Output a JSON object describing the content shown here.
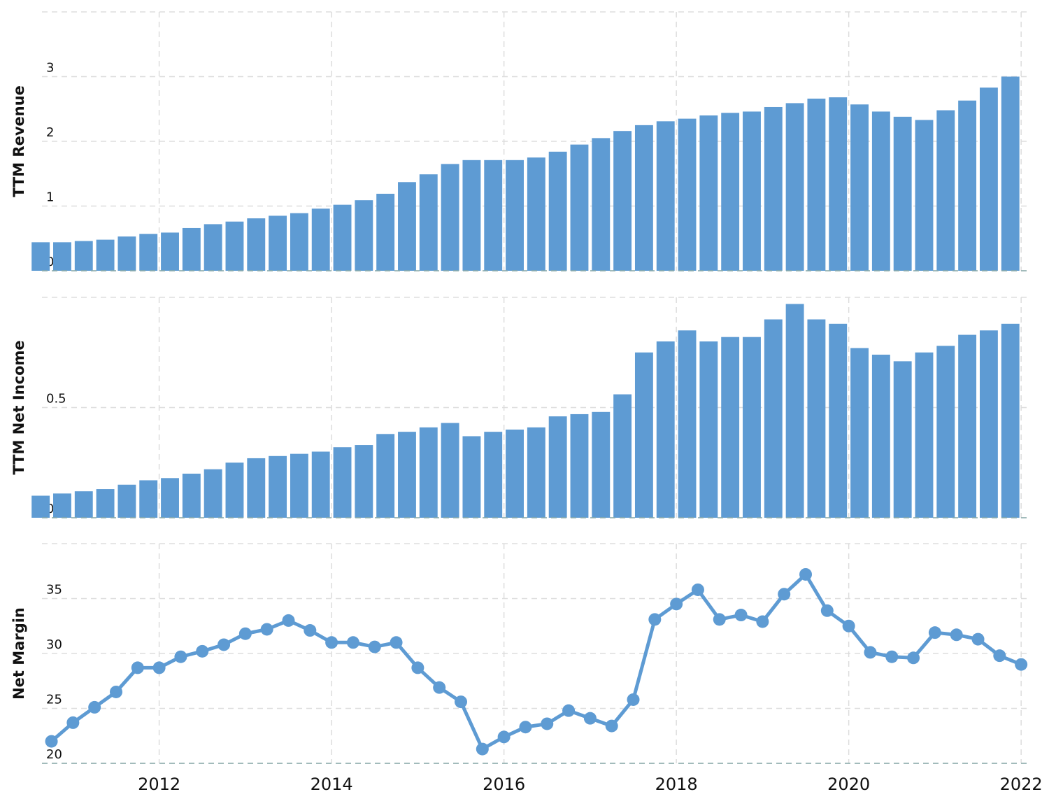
{
  "chart_data": [
    {
      "type": "bar",
      "ylabel": "TTM Revenue",
      "color": "#5e9bd3",
      "grid": true,
      "x": [
        2010.75,
        2011,
        2011.25,
        2011.5,
        2011.75,
        2012,
        2012.25,
        2012.5,
        2012.75,
        2013,
        2013.25,
        2013.5,
        2013.75,
        2014,
        2014.25,
        2014.5,
        2014.75,
        2015,
        2015.25,
        2015.5,
        2015.75,
        2016,
        2016.25,
        2016.5,
        2016.75,
        2017,
        2017.25,
        2017.5,
        2017.75,
        2018,
        2018.25,
        2018.5,
        2018.75,
        2019,
        2019.25,
        2019.5,
        2019.75,
        2020,
        2020.25,
        2020.5,
        2020.75,
        2021,
        2021.25,
        2021.5,
        2021.75,
        2022
      ],
      "values": [
        0.44,
        0.44,
        0.46,
        0.48,
        0.53,
        0.57,
        0.59,
        0.66,
        0.72,
        0.76,
        0.81,
        0.85,
        0.89,
        0.96,
        1.02,
        1.09,
        1.19,
        1.37,
        1.49,
        1.65,
        1.71,
        1.71,
        1.71,
        1.75,
        1.84,
        1.95,
        2.05,
        2.16,
        2.25,
        2.31,
        2.35,
        2.4,
        2.44,
        2.46,
        2.53,
        2.59,
        2.66,
        2.68,
        2.57,
        2.46,
        2.38,
        2.33,
        2.48,
        2.63,
        2.83,
        3.0
      ],
      "xlim": [
        2010.64,
        2022.08
      ],
      "ylim": [
        0,
        4
      ],
      "yticks": [
        0,
        1,
        2,
        3
      ]
    },
    {
      "type": "bar",
      "ylabel": "TTM Net Income",
      "color": "#5e9bd3",
      "grid": true,
      "x": [
        2010.75,
        2011,
        2011.25,
        2011.5,
        2011.75,
        2012,
        2012.25,
        2012.5,
        2012.75,
        2013,
        2013.25,
        2013.5,
        2013.75,
        2014,
        2014.25,
        2014.5,
        2014.75,
        2015,
        2015.25,
        2015.5,
        2015.75,
        2016,
        2016.25,
        2016.5,
        2016.75,
        2017,
        2017.25,
        2017.5,
        2017.75,
        2018,
        2018.25,
        2018.5,
        2018.75,
        2019,
        2019.25,
        2019.5,
        2019.75,
        2020,
        2020.25,
        2020.5,
        2020.75,
        2021,
        2021.25,
        2021.5,
        2021.75,
        2022
      ],
      "values": [
        0.1,
        0.11,
        0.12,
        0.13,
        0.15,
        0.17,
        0.18,
        0.2,
        0.22,
        0.25,
        0.27,
        0.28,
        0.29,
        0.3,
        0.32,
        0.33,
        0.38,
        0.39,
        0.41,
        0.43,
        0.37,
        0.39,
        0.4,
        0.41,
        0.46,
        0.47,
        0.48,
        0.56,
        0.75,
        0.8,
        0.85,
        0.8,
        0.82,
        0.82,
        0.9,
        0.97,
        0.9,
        0.88,
        0.77,
        0.74,
        0.71,
        0.75,
        0.78,
        0.83,
        0.85,
        0.88
      ],
      "xlim": [
        2010.64,
        2022.08
      ],
      "ylim": [
        0,
        1.0
      ],
      "yticks": [
        {
          "value": 0,
          "label": "0.0"
        },
        0.5
      ]
    },
    {
      "type": "line",
      "ylabel": "Net Margin",
      "color": "#5e9bd3",
      "grid": true,
      "x": [
        2010.75,
        2011,
        2011.25,
        2011.5,
        2011.75,
        2012,
        2012.25,
        2012.5,
        2012.75,
        2013,
        2013.25,
        2013.5,
        2013.75,
        2014,
        2014.25,
        2014.5,
        2014.75,
        2015,
        2015.25,
        2015.5,
        2015.75,
        2016,
        2016.25,
        2016.5,
        2016.75,
        2017,
        2017.25,
        2017.5,
        2017.75,
        2018,
        2018.25,
        2018.5,
        2018.75,
        2019,
        2019.25,
        2019.5,
        2019.75,
        2020,
        2020.25,
        2020.5,
        2020.75,
        2021,
        2021.25,
        2021.5,
        2021.75,
        2022
      ],
      "values": [
        22.0,
        23.7,
        25.1,
        26.5,
        28.7,
        28.7,
        29.7,
        30.2,
        30.8,
        31.8,
        32.2,
        33.0,
        32.1,
        31.0,
        31.0,
        30.6,
        31.0,
        28.7,
        26.9,
        25.6,
        21.3,
        22.4,
        23.3,
        23.6,
        24.8,
        24.1,
        23.4,
        25.8,
        33.1,
        34.5,
        35.8,
        33.1,
        33.5,
        32.9,
        35.4,
        37.2,
        33.9,
        32.5,
        30.1,
        29.7,
        29.6,
        31.9,
        31.7,
        31.3,
        29.8,
        29.0
      ],
      "xlim": [
        2010.64,
        2022.08
      ],
      "ylim": [
        20,
        40
      ],
      "yticks": [
        20,
        25,
        30,
        35
      ],
      "xticks": [
        2012,
        2014,
        2016,
        2018,
        2020,
        2022
      ]
    }
  ]
}
